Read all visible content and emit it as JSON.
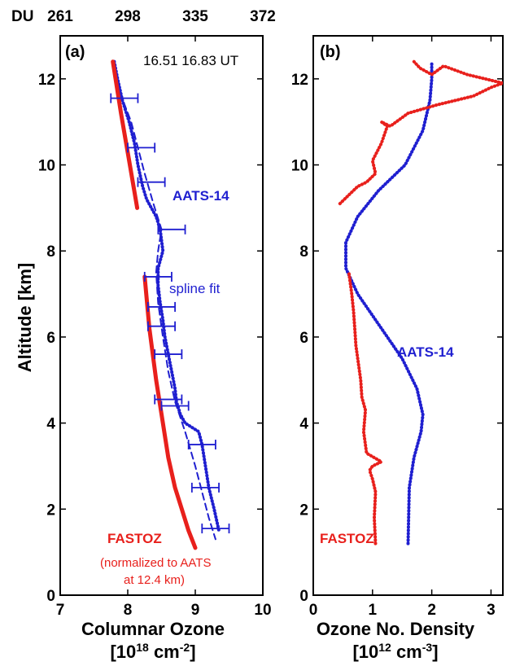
{
  "colors": {
    "aats": "#1f1fd0",
    "fastoz": "#e8201c",
    "axis": "#000000",
    "background": "#ffffff"
  },
  "chart_data": [
    {
      "type": "line",
      "panel_label": "(a)",
      "xlabel": "Columnar Ozone",
      "xunit": "[10^18 cm^-2]",
      "ylabel": "Altitude [km]",
      "xlim": [
        7,
        10
      ],
      "ylim": [
        0,
        13
      ],
      "xticks": [
        7,
        8,
        9,
        10
      ],
      "yticks": [
        0,
        2,
        4,
        6,
        8,
        10,
        12
      ],
      "top_axis": {
        "label": "DU",
        "ticks": [
          "261",
          "298",
          "335",
          "372"
        ]
      },
      "annotations": {
        "time": "16.51 16.83 UT",
        "aats": "AATS-14",
        "spline": "spline fit",
        "fastoz": "FASTOZ",
        "note_line1": "(normalized to AATS",
        "note_line2": "at 12.4 km)"
      },
      "series": [
        {
          "name": "AATS-14",
          "style": "dotted",
          "x": [
            7.8,
            7.85,
            7.92,
            8.02,
            8.1,
            8.15,
            8.22,
            8.28,
            8.35,
            8.42,
            8.48,
            8.52,
            8.45,
            8.45,
            8.48,
            8.52,
            8.55,
            8.6,
            8.65,
            8.7,
            8.72,
            8.78,
            8.85,
            9.05,
            9.1,
            9.15,
            9.2,
            9.28,
            9.35
          ],
          "y": [
            12.4,
            12.0,
            11.5,
            11.0,
            10.5,
            10.0,
            9.5,
            9.2,
            9.0,
            8.8,
            8.5,
            8.0,
            7.6,
            7.2,
            6.8,
            6.4,
            6.0,
            5.6,
            5.2,
            4.8,
            4.5,
            4.2,
            4.0,
            3.8,
            3.5,
            3.0,
            2.5,
            2.0,
            1.5
          ]
        },
        {
          "name": "spline fit",
          "style": "dashed",
          "x": [
            7.8,
            7.88,
            8.05,
            8.15,
            8.25,
            8.38,
            8.5,
            8.45,
            8.42,
            8.45,
            8.52,
            8.6,
            8.7,
            8.85,
            9.0,
            9.1,
            9.2,
            9.3
          ],
          "y": [
            12.4,
            11.7,
            11.0,
            10.4,
            9.8,
            9.1,
            8.5,
            8.0,
            7.5,
            6.8,
            6.0,
            5.2,
            4.5,
            3.8,
            3.0,
            2.4,
            1.8,
            1.3
          ]
        },
        {
          "name": "FASTOZ",
          "style": "solid",
          "x": [
            7.78,
            7.9,
            8.02,
            8.14
          ],
          "y": [
            12.4,
            11.2,
            10.1,
            9.0
          ]
        },
        {
          "name": "FASTOZ",
          "style": "solid",
          "x": [
            8.25,
            8.32,
            8.42,
            8.52,
            8.6,
            8.7,
            8.8,
            8.9,
            9.0
          ],
          "y": [
            7.4,
            6.2,
            5.0,
            4.0,
            3.2,
            2.5,
            2.0,
            1.5,
            1.1
          ]
        }
      ],
      "error_bars": [
        {
          "x": 7.95,
          "y": 11.55,
          "xerr": 0.2
        },
        {
          "x": 8.2,
          "y": 10.4,
          "xerr": 0.2
        },
        {
          "x": 8.35,
          "y": 9.6,
          "xerr": 0.2
        },
        {
          "x": 8.65,
          "y": 8.5,
          "xerr": 0.2
        },
        {
          "x": 8.45,
          "y": 7.4,
          "xerr": 0.2
        },
        {
          "x": 8.5,
          "y": 6.7,
          "xerr": 0.2
        },
        {
          "x": 8.5,
          "y": 6.25,
          "xerr": 0.2
        },
        {
          "x": 8.6,
          "y": 5.6,
          "xerr": 0.2
        },
        {
          "x": 8.6,
          "y": 4.55,
          "xerr": 0.2
        },
        {
          "x": 8.7,
          "y": 4.4,
          "xerr": 0.2
        },
        {
          "x": 9.1,
          "y": 3.5,
          "xerr": 0.2
        },
        {
          "x": 9.15,
          "y": 2.5,
          "xerr": 0.2
        },
        {
          "x": 9.3,
          "y": 1.55,
          "xerr": 0.2
        }
      ]
    },
    {
      "type": "line",
      "panel_label": "(b)",
      "xlabel": "Ozone No. Density",
      "xunit": "[10^12 cm^-3]",
      "xlim": [
        0,
        3.2
      ],
      "ylim": [
        0,
        13
      ],
      "xticks": [
        0,
        1,
        2,
        3
      ],
      "yticks": [
        0,
        2,
        4,
        6,
        8,
        10,
        12
      ],
      "annotations": {
        "aats": "AATS-14",
        "fastoz": "FASTOZ"
      },
      "series": [
        {
          "name": "AATS-14",
          "style": "dotted",
          "x": [
            1.6,
            1.62,
            1.7,
            1.82,
            1.85,
            1.75,
            1.5,
            1.1,
            0.75,
            0.55,
            0.55,
            0.75,
            1.1,
            1.55,
            1.85,
            1.97,
            2.0,
            2.0
          ],
          "y": [
            1.2,
            2.5,
            3.2,
            3.8,
            4.2,
            4.8,
            5.5,
            6.3,
            7.0,
            7.6,
            8.2,
            8.8,
            9.4,
            10.0,
            10.8,
            11.5,
            12.0,
            12.4
          ]
        },
        {
          "name": "FASTOZ",
          "style": "dotted",
          "x": [
            1.05,
            1.03,
            1.05,
            1.0,
            0.95,
            1.0,
            1.15,
            0.9,
            0.85,
            0.88,
            0.82,
            0.8,
            0.75,
            0.72,
            0.7,
            0.68,
            0.65,
            0.6
          ],
          "y": [
            1.2,
            1.8,
            2.4,
            2.7,
            2.9,
            3.0,
            3.1,
            3.3,
            3.8,
            4.3,
            4.6,
            5.0,
            5.5,
            5.8,
            6.2,
            6.6,
            7.0,
            7.5
          ]
        },
        {
          "name": "FASTOZ",
          "style": "dotted",
          "x": [
            0.45,
            0.6,
            0.75,
            0.9,
            1.05,
            1.0,
            1.15,
            1.25,
            1.15,
            1.3,
            1.4,
            1.6,
            1.85,
            2.1,
            2.4,
            2.7,
            3.0,
            3.2,
            2.6,
            2.2,
            2.0,
            1.8,
            1.7
          ],
          "y": [
            9.1,
            9.3,
            9.5,
            9.6,
            9.8,
            10.1,
            10.5,
            10.9,
            11.0,
            10.9,
            11.0,
            11.2,
            11.3,
            11.4,
            11.5,
            11.6,
            11.8,
            11.9,
            12.1,
            12.3,
            12.1,
            12.25,
            12.4
          ]
        }
      ]
    }
  ]
}
